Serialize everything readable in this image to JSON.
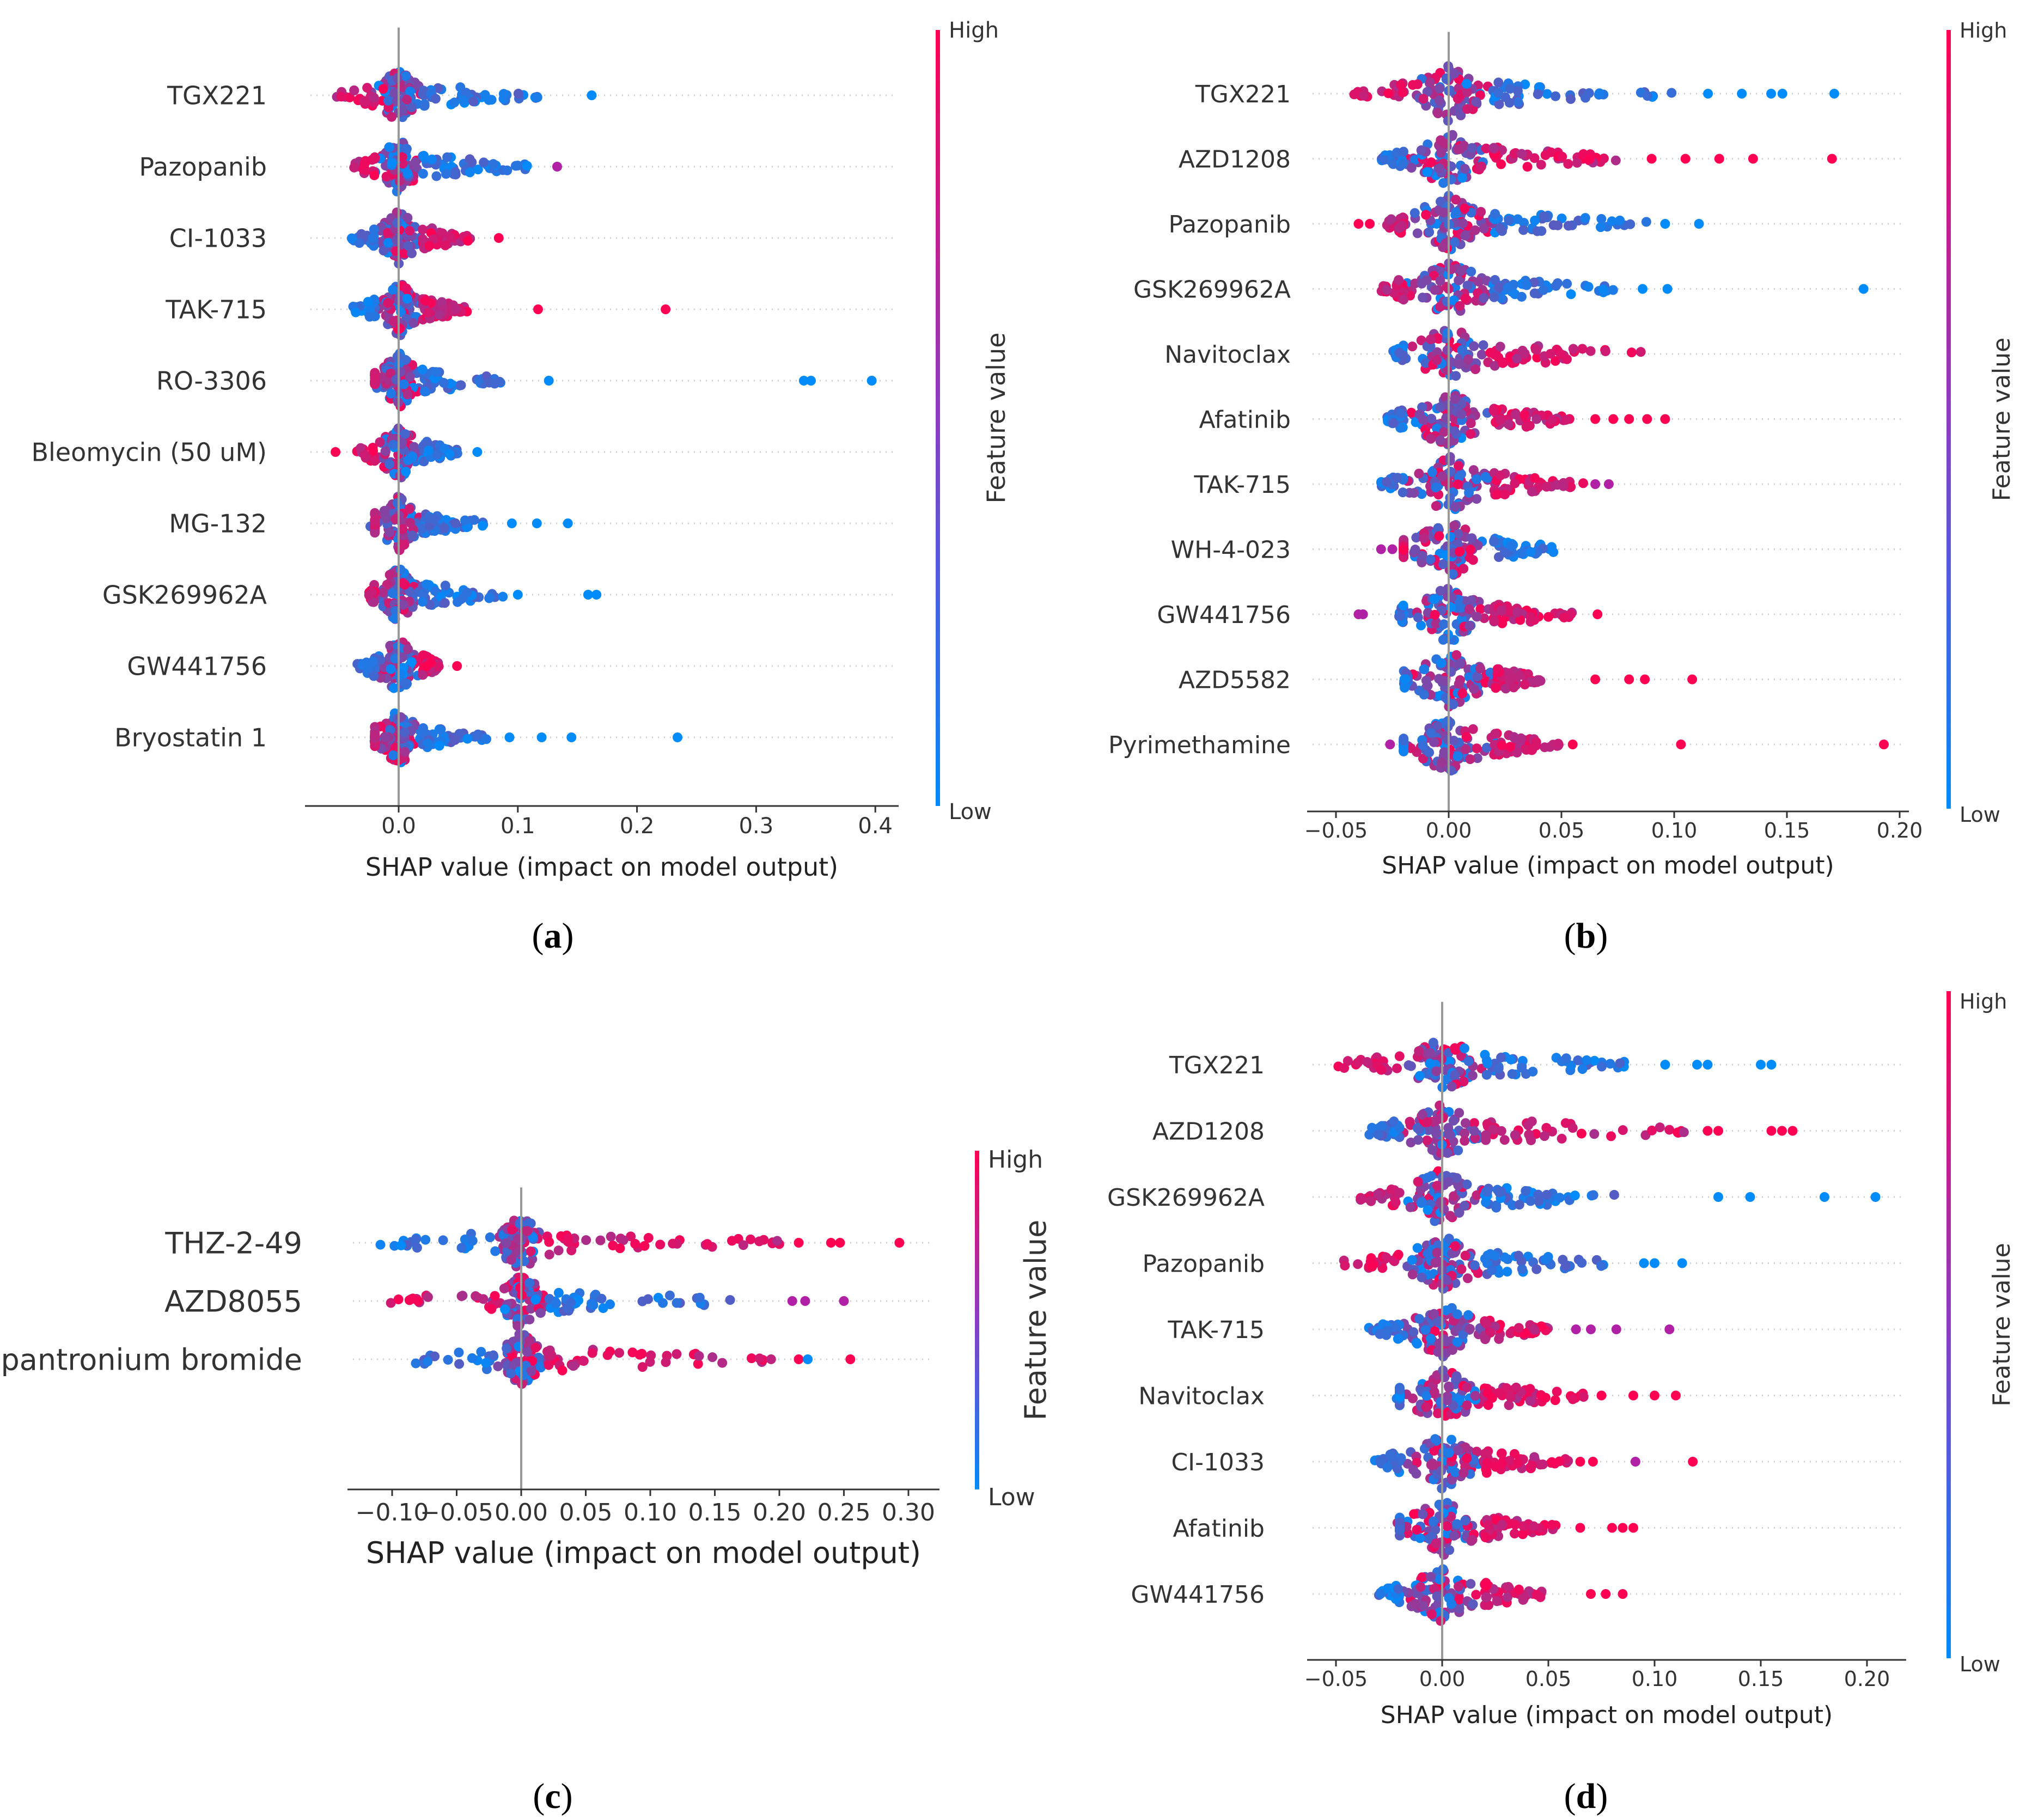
{
  "panels": [
    {
      "label": "a",
      "xlabel": "SHAP value (impact on model output)",
      "cbar_high": "High",
      "cbar_low": "Low",
      "cbar_title": "Feature value"
    },
    {
      "label": "b",
      "xlabel": "SHAP value (impact on model output)",
      "cbar_high": "High",
      "cbar_low": "Low",
      "cbar_title": "Feature value"
    },
    {
      "label": "c",
      "xlabel": "SHAP value (impact on model output)",
      "cbar_high": "High",
      "cbar_low": "Low",
      "cbar_title": "Feature value"
    },
    {
      "label": "d",
      "xlabel": "SHAP value (impact on model output)",
      "cbar_high": "High",
      "cbar_low": "Low",
      "cbar_title": "Feature value"
    }
  ],
  "colors": {
    "high": "#ff0052",
    "low": "#008bfb",
    "axis": "#333333",
    "zero": "#999999",
    "grid": "#cccccc"
  },
  "chart_data": [
    {
      "type": "scatter",
      "panel": "a",
      "xlabel": "SHAP value (impact on model output)",
      "xticks": [
        "0.0",
        "0.1",
        "0.2",
        "0.3",
        "0.4"
      ],
      "xlim": [
        -0.075,
        0.42
      ],
      "features": [
        {
          "name": "TGX221",
          "min": -0.055,
          "max": 0.118,
          "outliers": [
            {
              "x": 0.162,
              "c": "low"
            }
          ],
          "pos": "low"
        },
        {
          "name": "Pazopanib",
          "min": -0.042,
          "max": 0.11,
          "outliers": [
            {
              "x": 0.133,
              "c": "mid"
            }
          ],
          "pos": "low"
        },
        {
          "name": "CI-1033",
          "min": -0.04,
          "max": 0.062,
          "outliers": [
            {
              "x": 0.084,
              "c": "high"
            }
          ],
          "pos": "high"
        },
        {
          "name": "TAK-715",
          "min": -0.04,
          "max": 0.06,
          "outliers": [
            {
              "x": 0.117,
              "c": "high"
            },
            {
              "x": 0.224,
              "c": "high"
            }
          ],
          "pos": "high"
        },
        {
          "name": "RO-3306",
          "min": -0.02,
          "max": 0.09,
          "outliers": [
            {
              "x": 0.126,
              "c": "low"
            },
            {
              "x": 0.34,
              "c": "low"
            },
            {
              "x": 0.346,
              "c": "low"
            },
            {
              "x": 0.397,
              "c": "low"
            }
          ],
          "pos": "low"
        },
        {
          "name": "Bleomycin (50 uM)",
          "min": -0.035,
          "max": 0.05,
          "outliers": [
            {
              "x": -0.053,
              "c": "high"
            },
            {
              "x": 0.066,
              "c": "low"
            }
          ],
          "pos": "low"
        },
        {
          "name": "MG-132",
          "min": -0.02,
          "max": 0.072,
          "outliers": [
            {
              "x": 0.095,
              "c": "low"
            },
            {
              "x": 0.116,
              "c": "low"
            },
            {
              "x": 0.142,
              "c": "low"
            }
          ],
          "pos": "low"
        },
        {
          "name": "GSK269962A",
          "min": -0.025,
          "max": 0.09,
          "outliers": [
            {
              "x": 0.1,
              "c": "low"
            },
            {
              "x": 0.159,
              "c": "low"
            },
            {
              "x": 0.166,
              "c": "low"
            }
          ],
          "pos": "low"
        },
        {
          "name": "GW441756",
          "min": -0.035,
          "max": 0.035,
          "outliers": [
            {
              "x": 0.049,
              "c": "high"
            }
          ],
          "pos": "high"
        },
        {
          "name": "Bryostatin 1",
          "min": -0.02,
          "max": 0.075,
          "outliers": [
            {
              "x": 0.093,
              "c": "low"
            },
            {
              "x": 0.12,
              "c": "low"
            },
            {
              "x": 0.145,
              "c": "low"
            },
            {
              "x": 0.234,
              "c": "low"
            }
          ],
          "pos": "low"
        }
      ]
    },
    {
      "type": "scatter",
      "panel": "b",
      "xlabel": "SHAP value (impact on model output)",
      "xticks": [
        "−0.05",
        "0.00",
        "0.05",
        "0.10",
        "0.15",
        "0.20"
      ],
      "xlim": [
        -0.053,
        0.203
      ],
      "features": [
        {
          "name": "TGX221",
          "min": -0.042,
          "max": 0.1,
          "outliers": [
            {
              "x": 0.115,
              "c": "low"
            },
            {
              "x": 0.13,
              "c": "low"
            },
            {
              "x": 0.143,
              "c": "low"
            },
            {
              "x": 0.148,
              "c": "low"
            },
            {
              "x": 0.171,
              "c": "low"
            }
          ],
          "pos": "low"
        },
        {
          "name": "AZD1208",
          "min": -0.03,
          "max": 0.075,
          "outliers": [
            {
              "x": 0.09,
              "c": "high"
            },
            {
              "x": 0.105,
              "c": "high"
            },
            {
              "x": 0.12,
              "c": "high"
            },
            {
              "x": 0.135,
              "c": "high"
            },
            {
              "x": 0.17,
              "c": "high"
            }
          ],
          "pos": "high"
        },
        {
          "name": "Pazopanib",
          "min": -0.028,
          "max": 0.09,
          "outliers": [
            {
              "x": -0.04,
              "c": "high"
            },
            {
              "x": -0.035,
              "c": "high"
            },
            {
              "x": 0.096,
              "c": "low"
            },
            {
              "x": 0.111,
              "c": "low"
            }
          ],
          "pos": "low"
        },
        {
          "name": "GSK269962A",
          "min": -0.03,
          "max": 0.075,
          "outliers": [
            {
              "x": 0.086,
              "c": "low"
            },
            {
              "x": 0.097,
              "c": "low"
            },
            {
              "x": 0.184,
              "c": "low"
            }
          ],
          "pos": "low"
        },
        {
          "name": "Navitoclax",
          "min": -0.025,
          "max": 0.09,
          "outliers": [],
          "pos": "high"
        },
        {
          "name": "Afatinib",
          "min": -0.028,
          "max": 0.055,
          "outliers": [
            {
              "x": 0.065,
              "c": "high"
            },
            {
              "x": 0.073,
              "c": "high"
            },
            {
              "x": 0.08,
              "c": "high"
            },
            {
              "x": 0.088,
              "c": "high"
            },
            {
              "x": 0.096,
              "c": "high"
            }
          ],
          "pos": "high"
        },
        {
          "name": "TAK-715",
          "min": -0.03,
          "max": 0.06,
          "outliers": [
            {
              "x": 0.065,
              "c": "mid"
            },
            {
              "x": 0.071,
              "c": "mid"
            }
          ],
          "pos": "high"
        },
        {
          "name": "WH-4-023",
          "min": -0.02,
          "max": 0.048,
          "outliers": [
            {
              "x": -0.03,
              "c": "mid"
            },
            {
              "x": -0.025,
              "c": "mid"
            }
          ],
          "pos": "low"
        },
        {
          "name": "GW441756",
          "min": -0.022,
          "max": 0.055,
          "outliers": [
            {
              "x": -0.04,
              "c": "mid"
            },
            {
              "x": -0.038,
              "c": "mid"
            },
            {
              "x": 0.066,
              "c": "high"
            }
          ],
          "pos": "high"
        },
        {
          "name": "AZD5582",
          "min": -0.018,
          "max": 0.042,
          "outliers": [
            {
              "x": 0.065,
              "c": "high"
            },
            {
              "x": 0.08,
              "c": "high"
            },
            {
              "x": 0.087,
              "c": "high"
            },
            {
              "x": 0.108,
              "c": "high"
            }
          ],
          "pos": "high"
        },
        {
          "name": "Pyrimethamine",
          "min": -0.02,
          "max": 0.05,
          "outliers": [
            {
              "x": -0.026,
              "c": "mid"
            },
            {
              "x": 0.055,
              "c": "high"
            },
            {
              "x": 0.103,
              "c": "high"
            },
            {
              "x": 0.193,
              "c": "high"
            }
          ],
          "pos": "high"
        }
      ]
    },
    {
      "type": "scatter",
      "panel": "c",
      "xlabel": "SHAP value (impact on model output)",
      "xticks": [
        "−0.10",
        "−0.05",
        "0.00",
        "0.05",
        "0.10",
        "0.15",
        "0.20",
        "0.25",
        "0.30"
      ],
      "xlim": [
        -0.13,
        0.31
      ],
      "features": [
        {
          "name": "THZ-2-49",
          "min": -0.11,
          "max": 0.2,
          "outliers": [
            {
              "x": 0.215,
              "c": "high"
            },
            {
              "x": 0.24,
              "c": "high"
            },
            {
              "x": 0.247,
              "c": "high"
            },
            {
              "x": 0.293,
              "c": "high"
            }
          ],
          "pos": "high"
        },
        {
          "name": "AZD8055",
          "min": -0.11,
          "max": 0.17,
          "outliers": [
            {
              "x": 0.21,
              "c": "mid"
            },
            {
              "x": 0.22,
              "c": "mid"
            },
            {
              "x": 0.25,
              "c": "mid"
            }
          ],
          "pos": "low"
        },
        {
          "name": "Sepantronium bromide",
          "min": -0.1,
          "max": 0.2,
          "outliers": [
            {
              "x": 0.215,
              "c": "high"
            },
            {
              "x": 0.222,
              "c": "low"
            },
            {
              "x": 0.255,
              "c": "high"
            }
          ],
          "pos": "high"
        }
      ]
    },
    {
      "type": "scatter",
      "panel": "d",
      "xlabel": "SHAP value (impact on model output)",
      "xticks": [
        "−0.05",
        "0.00",
        "0.05",
        "0.10",
        "0.15",
        "0.20"
      ],
      "xlim": [
        -0.065,
        0.218
      ],
      "features": [
        {
          "name": "TGX221",
          "min": -0.052,
          "max": 0.09,
          "outliers": [
            {
              "x": 0.105,
              "c": "low"
            },
            {
              "x": 0.12,
              "c": "low"
            },
            {
              "x": 0.125,
              "c": "low"
            },
            {
              "x": 0.15,
              "c": "low"
            },
            {
              "x": 0.155,
              "c": "low"
            }
          ],
          "pos": "low"
        },
        {
          "name": "AZD1208",
          "min": -0.038,
          "max": 0.115,
          "outliers": [
            {
              "x": 0.125,
              "c": "high"
            },
            {
              "x": 0.13,
              "c": "high"
            },
            {
              "x": 0.155,
              "c": "high"
            },
            {
              "x": 0.16,
              "c": "high"
            },
            {
              "x": 0.165,
              "c": "high"
            }
          ],
          "pos": "high"
        },
        {
          "name": "GSK269962A",
          "min": -0.04,
          "max": 0.09,
          "outliers": [
            {
              "x": 0.13,
              "c": "low"
            },
            {
              "x": 0.145,
              "c": "low"
            },
            {
              "x": 0.18,
              "c": "low"
            },
            {
              "x": 0.204,
              "c": "low"
            }
          ],
          "pos": "low"
        },
        {
          "name": "Pazopanib",
          "min": -0.048,
          "max": 0.08,
          "outliers": [
            {
              "x": 0.095,
              "c": "low"
            },
            {
              "x": 0.1,
              "c": "low"
            },
            {
              "x": 0.113,
              "c": "low"
            }
          ],
          "pos": "low"
        },
        {
          "name": "TAK-715",
          "min": -0.035,
          "max": 0.05,
          "outliers": [
            {
              "x": 0.063,
              "c": "mid"
            },
            {
              "x": 0.07,
              "c": "mid"
            },
            {
              "x": 0.082,
              "c": "mid"
            },
            {
              "x": 0.107,
              "c": "mid"
            }
          ],
          "pos": "high"
        },
        {
          "name": "Navitoclax",
          "min": -0.02,
          "max": 0.07,
          "outliers": [
            {
              "x": 0.075,
              "c": "high"
            },
            {
              "x": 0.09,
              "c": "high"
            },
            {
              "x": 0.1,
              "c": "high"
            },
            {
              "x": 0.11,
              "c": "high"
            }
          ],
          "pos": "high"
        },
        {
          "name": "CI-1033",
          "min": -0.032,
          "max": 0.06,
          "outliers": [
            {
              "x": 0.065,
              "c": "high"
            },
            {
              "x": 0.071,
              "c": "high"
            },
            {
              "x": 0.091,
              "c": "mid"
            },
            {
              "x": 0.118,
              "c": "high"
            }
          ],
          "pos": "high"
        },
        {
          "name": "Afatinib",
          "min": -0.02,
          "max": 0.055,
          "outliers": [
            {
              "x": 0.065,
              "c": "high"
            },
            {
              "x": 0.08,
              "c": "high"
            },
            {
              "x": 0.085,
              "c": "high"
            },
            {
              "x": 0.09,
              "c": "high"
            }
          ],
          "pos": "high"
        },
        {
          "name": "GW441756",
          "min": -0.03,
          "max": 0.05,
          "outliers": [
            {
              "x": 0.07,
              "c": "high"
            },
            {
              "x": 0.077,
              "c": "high"
            },
            {
              "x": 0.085,
              "c": "high"
            }
          ],
          "pos": "high"
        }
      ]
    }
  ]
}
